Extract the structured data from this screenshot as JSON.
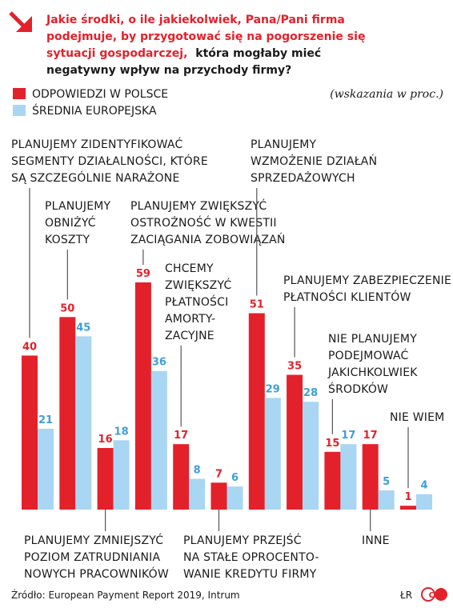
{
  "header": {
    "title_red_lines": [
      "Jakie środki, o ile jakiekolwiek, Pana/Pani firma",
      "podejmuje, by przygotować się na pogorszenie się",
      "sytuacji gospodarczej,"
    ],
    "title_dark_tail": "która mogłaby mieć",
    "title_dark_line": "negatywny wpływ na przychody firmy?"
  },
  "note": "(wskazania w proc.)",
  "source": "Źródło: European Payment Report 2019, Intrum",
  "credit": "ŁR",
  "logo_text": "CP",
  "colors": {
    "poland": "#e3212b",
    "europe": "#a9d6f2",
    "title_red": "#e3212b",
    "europe_label": "#3d9fd9",
    "text": "#1a1a1a"
  },
  "chart_data": {
    "type": "bar",
    "categories": [
      "PLANUJEMY ZIDENTYFIKOWAĆ SEGMENTY DZIAŁALNOŚCI, KTÓRE SĄ SZCZEGÓLNIE NARAŻONE",
      "PLANUJEMY OBNIŻYĆ KOSZTY",
      "PLANUJEMY ZMNIEJSZYĆ POZIOM ZATRUDNIANIA NOWYCH PRACOWNIKÓW",
      "PLANUJEMY ZWIĘKSZYĆ OSTROŻNOŚĆ W KWESTII ZACIĄGANIA ZOBOWIĄZAŃ",
      "CHCEMY ZWIĘKSZYĆ PŁATNOŚCI AMORTY-ZACYJNE",
      "PLANUJEMY PRZEJŚĆ NA STAŁE OPROCENTO-WANIE KREDYTU FIRMY",
      "PLANUJEMY WZMOŻENIE DZIAŁAŃ SPRZEDAŻOWYCH",
      "PLANUJEMY ZABEZPIECZENIE PŁATNOŚCI KLIENTÓW",
      "NIE PLANUJEMY PODEJMOWAĆ JAKICHKOLWIEK ŚRODKÓW",
      "INNE",
      "NIE WIEM"
    ],
    "category_lines": [
      [
        "PLANUJEMY ZIDENTYFIKOWAĆ",
        "SEGMENTY DZIAŁALNOŚCI, KTÓRE",
        "SĄ SZCZEGÓLNIE NARAŻONE"
      ],
      [
        "PLANUJEMY",
        "OBNIŻYĆ",
        "KOSZTY"
      ],
      [
        "PLANUJEMY ZMNIEJSZYĆ",
        "POZIOM ZATRUDNIANIA",
        "NOWYCH PRACOWNIKÓW"
      ],
      [
        "PLANUJEMY ZWIĘKSZYĆ",
        "OSTROŻNOŚĆ W KWESTII",
        "ZACIĄGANIA ZOBOWIĄZAŃ"
      ],
      [
        "CHCEMY",
        "ZWIĘKSZYĆ",
        "PŁATNOŚCI",
        "AMORTY-",
        "ZACYJNE"
      ],
      [
        "PLANUJEMY PRZEJŚĆ",
        "NA STAŁE OPROCENTO-",
        "WANIE KREDYTU FIRMY"
      ],
      [
        "PLANUJEMY",
        "WZMOŻENIE DZIAŁAŃ",
        "SPRZEDAŻOWYCH"
      ],
      [
        "PLANUJEMY ZABEZPIECZENIE",
        "PŁATNOŚCI KLIENTÓW"
      ],
      [
        "NIE PLANUJEMY",
        "PODEJMOWAĆ",
        "JAKICHKOLWIEK",
        "ŚRODKÓW"
      ],
      [
        "INNE"
      ],
      [
        "NIE WIEM"
      ]
    ],
    "series": [
      {
        "name": "ODPOWIEDZI W POLSCE",
        "values": [
          40,
          50,
          16,
          59,
          17,
          7,
          51,
          35,
          15,
          17,
          1
        ]
      },
      {
        "name": "ŚREDNIA EUROPEJSKA",
        "values": [
          21,
          45,
          18,
          36,
          8,
          6,
          29,
          28,
          17,
          5,
          4
        ]
      }
    ],
    "unit": "proc.",
    "ylim": [
      0,
      59
    ],
    "grid": false,
    "legend_position": "top-left"
  }
}
